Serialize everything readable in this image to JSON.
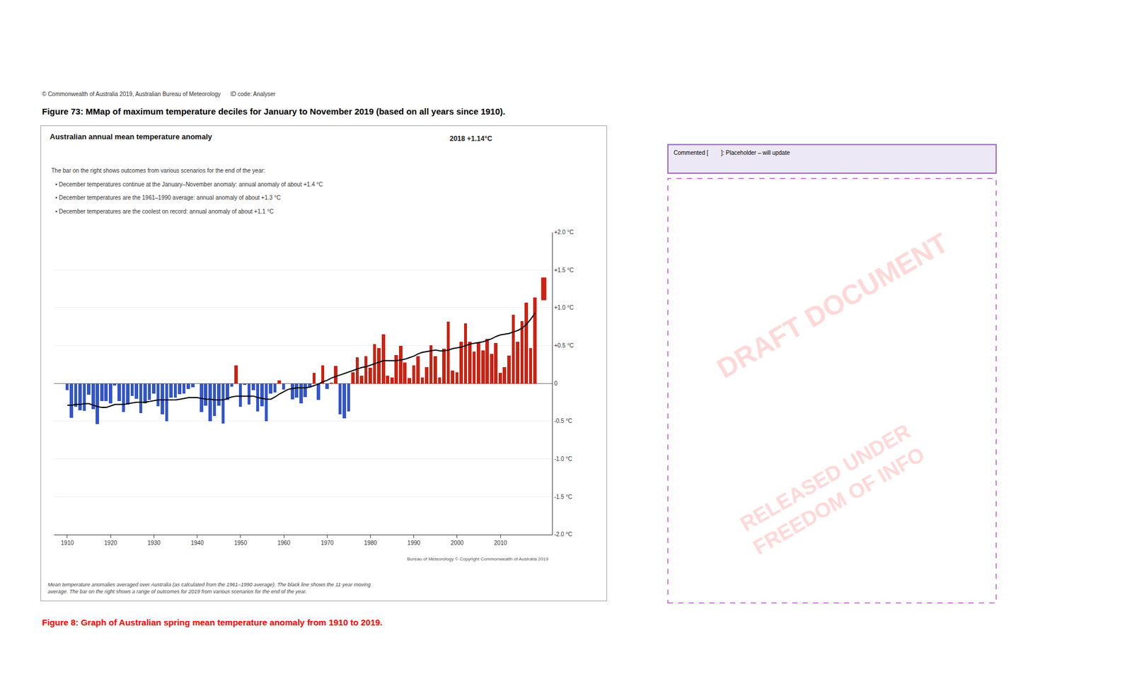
{
  "chart_data": {
    "type": "bar",
    "title": "Australian annual mean temperature anomaly",
    "annotations": [
      "© Commonwealth of Australia 2019, Australian Bureau of Meteorology      ID code: Analyser",
      "Figure 73: MMap of maximum temperature deciles for January to November 2019 (based on all years since 1910).",
      "2018 +1.14°C",
      "The bar on the right shows outcomes from various scenarios for the end of the year:",
      "• December temperatures continue at the January–November anomaly: annual anomaly of about +1.4 °C",
      "• December temperatures are the 1961–1990 average: annual anomaly of about +1.3 °C",
      "• December temperatures are the coolest on record: annual anomaly of about +1.1 °C",
      "Bureau of Meteorology © Copyright Commonwealth of Australia 2019",
      "Mean temperature anomalies averaged over Australia (as calculated from the 1961–1990 average). The black line shows the 11-year moving\naverage. The bar on the right shows a range of outcomes for 2019 from various scenarios for the end of the year.",
      "Figure 8: Graph of Australian spring mean temperature anomaly from 1910 to 2019.",
      "Commented [        ]: Placeholder – will update",
      "DRAFT DOCUMENT",
      "RELEASED UNDER\nFREEDOM OF INFO"
    ],
    "x": [
      1910,
      1911,
      1912,
      1913,
      1914,
      1915,
      1916,
      1917,
      1918,
      1919,
      1920,
      1921,
      1922,
      1923,
      1924,
      1925,
      1926,
      1927,
      1928,
      1929,
      1930,
      1931,
      1932,
      1933,
      1934,
      1935,
      1936,
      1937,
      1938,
      1939,
      1940,
      1941,
      1942,
      1943,
      1944,
      1945,
      1946,
      1947,
      1948,
      1949,
      1950,
      1951,
      1952,
      1953,
      1954,
      1955,
      1956,
      1957,
      1958,
      1959,
      1960,
      1961,
      1962,
      1963,
      1964,
      1965,
      1966,
      1967,
      1968,
      1969,
      1970,
      1971,
      1972,
      1973,
      1974,
      1975,
      1976,
      1977,
      1978,
      1979,
      1980,
      1981,
      1982,
      1983,
      1984,
      1985,
      1986,
      1987,
      1988,
      1989,
      1990,
      1991,
      1992,
      1993,
      1994,
      1995,
      1996,
      1997,
      1998,
      1999,
      2000,
      2001,
      2002,
      2003,
      2004,
      2005,
      2006,
      2007,
      2008,
      2009,
      2010,
      2011,
      2012,
      2013,
      2014,
      2015,
      2016,
      2017,
      2018
    ],
    "series": [
      {
        "type": "bar",
        "values": [
          -0.09,
          -0.45,
          -0.31,
          -0.35,
          -0.36,
          -0.15,
          -0.34,
          -0.54,
          -0.23,
          -0.23,
          -0.26,
          -0.03,
          -0.23,
          -0.38,
          -0.28,
          -0.16,
          -0.2,
          -0.39,
          -0.26,
          -0.22,
          -0.13,
          -0.3,
          -0.41,
          -0.5,
          -0.19,
          -0.19,
          -0.14,
          -0.13,
          -0.07,
          -0.05,
          -0.0,
          -0.38,
          -0.29,
          -0.5,
          -0.43,
          -0.29,
          -0.53,
          -0.22,
          -0.04,
          0.24,
          -0.31,
          -0.02,
          -0.28,
          -0.09,
          -0.37,
          -0.3,
          -0.5,
          -0.13,
          -0.12,
          0.04,
          -0.08,
          0.0,
          -0.21,
          -0.19,
          -0.26,
          -0.18,
          -0.05,
          0.14,
          -0.22,
          0.24,
          -0.07,
          0.01,
          0.23,
          -0.41,
          -0.46,
          -0.37,
          0.15,
          0.35,
          0.1,
          0.36,
          0.21,
          0.52,
          0.47,
          0.65,
          0.1,
          0.08,
          0.38,
          0.5,
          0.28,
          0.07,
          0.24,
          0.36,
          0.08,
          0.22,
          0.51,
          0.36,
          0.08,
          0.46,
          0.82,
          0.17,
          0.15,
          0.55,
          0.8,
          0.55,
          0.42,
          0.54,
          0.44,
          0.59,
          0.39,
          0.54,
          0.14,
          0.22,
          0.37,
          0.91,
          0.55,
          0.83,
          1.07,
          0.47,
          1.14
        ],
        "colors": [
          "#3355cc",
          "#3355cc",
          "#3355cc",
          "#3355cc",
          "#3355cc",
          "#3355cc",
          "#3355cc",
          "#3355cc",
          "#3355cc",
          "#3355cc",
          "#3355cc",
          "#3355cc",
          "#3355cc",
          "#3355cc",
          "#3355cc",
          "#3355cc",
          "#3355cc",
          "#3355cc",
          "#3355cc",
          "#3355cc",
          "#3355cc",
          "#3355cc",
          "#3355cc",
          "#3355cc",
          "#3355cc",
          "#3355cc",
          "#3355cc",
          "#3355cc",
          "#3355cc",
          "#3355cc",
          "#cc2211",
          "#3355cc",
          "#3355cc",
          "#3355cc",
          "#3355cc",
          "#3355cc",
          "#3355cc",
          "#3355cc",
          "#3355cc",
          "#cc2211",
          "#3355cc",
          "#3355cc",
          "#3355cc",
          "#3355cc",
          "#3355cc",
          "#3355cc",
          "#3355cc",
          "#3355cc",
          "#3355cc",
          "#cc2211",
          "#3355cc",
          "#cc2211",
          "#3355cc",
          "#3355cc",
          "#3355cc",
          "#3355cc",
          "#3355cc",
          "#cc2211",
          "#3355cc",
          "#cc2211",
          "#3355cc",
          "#cc2211",
          "#cc2211",
          "#3355cc",
          "#3355cc",
          "#3355cc",
          "#cc2211",
          "#cc2211",
          "#cc2211",
          "#cc2211",
          "#cc2211",
          "#cc2211",
          "#cc2211",
          "#cc2211",
          "#cc2211",
          "#cc2211",
          "#cc2211",
          "#cc2211",
          "#cc2211",
          "#cc2211",
          "#cc2211",
          "#cc2211",
          "#cc2211",
          "#cc2211",
          "#cc2211",
          "#cc2211",
          "#cc2211",
          "#cc2211",
          "#cc2211",
          "#cc2211",
          "#cc2211",
          "#cc2211",
          "#cc2211",
          "#cc2211",
          "#cc2211",
          "#cc2211",
          "#cc2211",
          "#cc2211",
          "#cc2211",
          "#cc2211",
          "#cc2211",
          "#cc2211",
          "#cc2211",
          "#cc2211",
          "#cc2211",
          "#cc2211",
          "#cc2211",
          "#cc2211",
          "#cc2211"
        ]
      },
      {
        "type": "line",
        "color": "#000000",
        "values": [
          -0.29,
          -0.29,
          -0.28,
          -0.28,
          -0.27,
          -0.27,
          -0.29,
          -0.31,
          -0.32,
          -0.32,
          -0.3,
          -0.28,
          -0.28,
          -0.28,
          -0.27,
          -0.26,
          -0.25,
          -0.25,
          -0.25,
          -0.24,
          -0.23,
          -0.22,
          -0.22,
          -0.22,
          -0.22,
          -0.22,
          -0.21,
          -0.2,
          -0.19,
          -0.19,
          -0.19,
          -0.2,
          -0.21,
          -0.21,
          -0.22,
          -0.22,
          -0.22,
          -0.2,
          -0.18,
          -0.17,
          -0.17,
          -0.17,
          -0.17,
          -0.17,
          -0.19,
          -0.2,
          -0.21,
          -0.21,
          -0.18,
          -0.14,
          -0.11,
          -0.08,
          -0.07,
          -0.06,
          -0.06,
          -0.06,
          -0.05,
          -0.03,
          -0.01,
          0.02,
          0.04,
          0.07,
          0.09,
          0.11,
          0.13,
          0.15,
          0.17,
          0.19,
          0.21,
          0.22,
          0.24,
          0.26,
          0.28,
          0.3,
          0.3,
          0.3,
          0.3,
          0.31,
          0.32,
          0.34,
          0.36,
          0.39,
          0.41,
          0.42,
          0.43,
          0.44,
          0.43,
          0.43,
          0.44,
          0.46,
          0.47,
          0.48,
          0.5,
          0.52,
          0.53,
          0.54,
          0.55,
          0.57,
          0.59,
          0.62,
          0.64,
          0.65,
          0.66,
          0.68,
          0.7,
          0.73,
          0.78,
          0.85,
          0.93
        ]
      },
      {
        "type": "line",
        "color": "#cc2211",
        "x": [
          2020,
          2020,
          2020
        ],
        "values": [
          1.4,
          1.3,
          1.1
        ]
      }
    ],
    "xlim": [
      1907,
      2022
    ],
    "xticks": [
      1910,
      1920,
      1930,
      1940,
      1950,
      1960,
      1970,
      1980,
      1990,
      2000,
      2010
    ],
    "ylim": [
      -2.0,
      2.0
    ],
    "yticks": [
      {
        "value": -2.0,
        "label": "-2.0 °C"
      },
      {
        "value": -1.5,
        "label": "-1.5 °C"
      },
      {
        "value": -1.0,
        "label": "-1.0 °C"
      },
      {
        "value": -0.5,
        "label": "-0.5 °C"
      },
      0,
      {
        "value": 0.5,
        "label": "+0.5 °C"
      },
      {
        "value": 1.0,
        "label": "+1.0 °C"
      },
      {
        "value": 1.5,
        "label": "+1.5 °C"
      },
      {
        "value": 2.0,
        "label": "+2.0 °C"
      }
    ],
    "grid": true
  }
}
